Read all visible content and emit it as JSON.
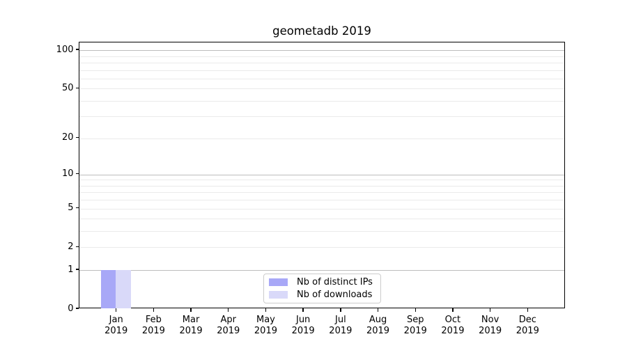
{
  "chart_data": {
    "type": "bar",
    "title": "geometadb 2019",
    "categories": [
      "Jan",
      "Feb",
      "Mar",
      "Apr",
      "May",
      "Jun",
      "Jul",
      "Aug",
      "Sep",
      "Oct",
      "Nov",
      "Dec"
    ],
    "category_year": "2019",
    "series": [
      {
        "name": "Nb of distinct IPs",
        "color": "#a8a8f7",
        "values": [
          1,
          0,
          0,
          0,
          0,
          0,
          0,
          0,
          0,
          0,
          0,
          0
        ]
      },
      {
        "name": "Nb of downloads",
        "color": "#d9d9f9",
        "values": [
          1,
          0,
          0,
          0,
          0,
          0,
          0,
          0,
          0,
          0,
          0,
          0
        ]
      }
    ],
    "xlabel": "",
    "ylabel": "",
    "yscale": "log1p",
    "ylim": [
      0,
      115
    ],
    "ytick_values": [
      0,
      1,
      2,
      5,
      10,
      20,
      50,
      100
    ],
    "ytick_labels": [
      "0",
      "1",
      "2",
      "5",
      "10",
      "20",
      "50",
      "100"
    ],
    "major_grid_values": [
      1,
      10,
      100
    ],
    "minor_grid_values": [
      2,
      3,
      4,
      5,
      6,
      7,
      8,
      9,
      20,
      30,
      40,
      50,
      60,
      70,
      80,
      90
    ],
    "grid": true,
    "legend_position": "lower center",
    "colors": {
      "major_grid": "#bdbdbd",
      "minor_grid": "#eaeaea",
      "spine": "#000000",
      "text": "#000000",
      "background": "#ffffff"
    }
  }
}
